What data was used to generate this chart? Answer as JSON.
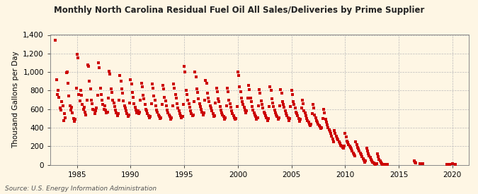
{
  "title": "Monthly North Carolina Residual Fuel Oil All Sales/Deliveries by Prime Supplier",
  "ylabel": "Thousand Gallons per Day",
  "source": "Source: U.S. Energy Information Administration",
  "background_color": "#FEF6E4",
  "dot_color": "#CC0000",
  "grid_color": "#BBBBBB",
  "ylim": [
    0,
    1400
  ],
  "yticks": [
    0,
    200,
    400,
    600,
    800,
    1000,
    1200,
    1400
  ],
  "xlim": [
    1982.5,
    2021.5
  ],
  "xticks": [
    1985,
    1990,
    1995,
    2000,
    2005,
    2010,
    2015,
    2020
  ],
  "data": [
    [
      1983.0,
      1340
    ],
    [
      1983.08,
      920
    ],
    [
      1983.17,
      760
    ],
    [
      1983.25,
      800
    ],
    [
      1983.33,
      730
    ],
    [
      1983.42,
      610
    ],
    [
      1983.5,
      590
    ],
    [
      1983.58,
      680
    ],
    [
      1983.67,
      640
    ],
    [
      1983.75,
      480
    ],
    [
      1983.83,
      550
    ],
    [
      1983.92,
      510
    ],
    [
      1984.0,
      990
    ],
    [
      1984.08,
      1000
    ],
    [
      1984.17,
      880
    ],
    [
      1984.25,
      740
    ],
    [
      1984.33,
      640
    ],
    [
      1984.42,
      590
    ],
    [
      1984.5,
      620
    ],
    [
      1984.58,
      560
    ],
    [
      1984.67,
      500
    ],
    [
      1984.75,
      470
    ],
    [
      1984.83,
      490
    ],
    [
      1984.92,
      830
    ],
    [
      1985.0,
      1190
    ],
    [
      1985.08,
      1150
    ],
    [
      1985.17,
      760
    ],
    [
      1985.25,
      690
    ],
    [
      1985.33,
      800
    ],
    [
      1985.42,
      750
    ],
    [
      1985.5,
      650
    ],
    [
      1985.58,
      600
    ],
    [
      1985.67,
      620
    ],
    [
      1985.75,
      570
    ],
    [
      1985.83,
      540
    ],
    [
      1985.92,
      700
    ],
    [
      1986.0,
      1080
    ],
    [
      1986.08,
      1060
    ],
    [
      1986.17,
      900
    ],
    [
      1986.25,
      820
    ],
    [
      1986.33,
      700
    ],
    [
      1986.42,
      660
    ],
    [
      1986.5,
      600
    ],
    [
      1986.58,
      590
    ],
    [
      1986.67,
      550
    ],
    [
      1986.75,
      580
    ],
    [
      1986.83,
      610
    ],
    [
      1986.92,
      750
    ],
    [
      1987.0,
      1100
    ],
    [
      1987.08,
      1050
    ],
    [
      1987.17,
      830
    ],
    [
      1987.25,
      760
    ],
    [
      1987.33,
      700
    ],
    [
      1987.42,
      650
    ],
    [
      1987.5,
      600
    ],
    [
      1987.58,
      640
    ],
    [
      1987.67,
      590
    ],
    [
      1987.75,
      560
    ],
    [
      1987.83,
      570
    ],
    [
      1987.92,
      720
    ],
    [
      1988.0,
      1010
    ],
    [
      1988.08,
      980
    ],
    [
      1988.17,
      820
    ],
    [
      1988.25,
      780
    ],
    [
      1988.33,
      700
    ],
    [
      1988.42,
      670
    ],
    [
      1988.5,
      630
    ],
    [
      1988.58,
      590
    ],
    [
      1988.67,
      560
    ],
    [
      1988.75,
      530
    ],
    [
      1988.83,
      550
    ],
    [
      1988.92,
      700
    ],
    [
      1989.0,
      960
    ],
    [
      1989.08,
      900
    ],
    [
      1989.17,
      820
    ],
    [
      1989.25,
      770
    ],
    [
      1989.33,
      690
    ],
    [
      1989.42,
      640
    ],
    [
      1989.5,
      610
    ],
    [
      1989.58,
      580
    ],
    [
      1989.67,
      550
    ],
    [
      1989.75,
      520
    ],
    [
      1989.83,
      540
    ],
    [
      1989.92,
      670
    ],
    [
      1990.0,
      920
    ],
    [
      1990.08,
      870
    ],
    [
      1990.17,
      780
    ],
    [
      1990.25,
      730
    ],
    [
      1990.33,
      660
    ],
    [
      1990.42,
      620
    ],
    [
      1990.5,
      590
    ],
    [
      1990.58,
      560
    ],
    [
      1990.67,
      580
    ],
    [
      1990.75,
      550
    ],
    [
      1990.83,
      570
    ],
    [
      1990.92,
      700
    ],
    [
      1991.0,
      880
    ],
    [
      1991.08,
      840
    ],
    [
      1991.17,
      750
    ],
    [
      1991.25,
      710
    ],
    [
      1991.33,
      650
    ],
    [
      1991.42,
      600
    ],
    [
      1991.5,
      580
    ],
    [
      1991.58,
      550
    ],
    [
      1991.67,
      530
    ],
    [
      1991.75,
      510
    ],
    [
      1991.83,
      520
    ],
    [
      1991.92,
      660
    ],
    [
      1992.0,
      870
    ],
    [
      1992.08,
      830
    ],
    [
      1992.17,
      740
    ],
    [
      1992.25,
      700
    ],
    [
      1992.33,
      640
    ],
    [
      1992.42,
      590
    ],
    [
      1992.5,
      570
    ],
    [
      1992.58,
      540
    ],
    [
      1992.67,
      520
    ],
    [
      1992.75,
      500
    ],
    [
      1992.83,
      510
    ],
    [
      1992.92,
      650
    ],
    [
      1993.0,
      860
    ],
    [
      1993.08,
      820
    ],
    [
      1993.17,
      730
    ],
    [
      1993.25,
      690
    ],
    [
      1993.33,
      640
    ],
    [
      1993.42,
      590
    ],
    [
      1993.5,
      560
    ],
    [
      1993.58,
      540
    ],
    [
      1993.67,
      520
    ],
    [
      1993.75,
      490
    ],
    [
      1993.83,
      510
    ],
    [
      1993.92,
      640
    ],
    [
      1994.0,
      870
    ],
    [
      1994.08,
      830
    ],
    [
      1994.17,
      760
    ],
    [
      1994.25,
      720
    ],
    [
      1994.33,
      660
    ],
    [
      1994.42,
      610
    ],
    [
      1994.5,
      580
    ],
    [
      1994.58,
      550
    ],
    [
      1994.67,
      530
    ],
    [
      1994.75,
      510
    ],
    [
      1994.83,
      520
    ],
    [
      1994.92,
      650
    ],
    [
      1995.0,
      1060
    ],
    [
      1995.08,
      1000
    ],
    [
      1995.17,
      800
    ],
    [
      1995.25,
      760
    ],
    [
      1995.33,
      700
    ],
    [
      1995.42,
      660
    ],
    [
      1995.5,
      620
    ],
    [
      1995.58,
      580
    ],
    [
      1995.67,
      550
    ],
    [
      1995.75,
      530
    ],
    [
      1995.83,
      540
    ],
    [
      1995.92,
      680
    ],
    [
      1996.0,
      1000
    ],
    [
      1996.08,
      950
    ],
    [
      1996.17,
      820
    ],
    [
      1996.25,
      780
    ],
    [
      1996.33,
      710
    ],
    [
      1996.42,
      660
    ],
    [
      1996.5,
      630
    ],
    [
      1996.58,
      600
    ],
    [
      1996.67,
      570
    ],
    [
      1996.75,
      540
    ],
    [
      1996.83,
      560
    ],
    [
      1996.92,
      700
    ],
    [
      1997.0,
      910
    ],
    [
      1997.08,
      880
    ],
    [
      1997.17,
      770
    ],
    [
      1997.25,
      720
    ],
    [
      1997.33,
      680
    ],
    [
      1997.42,
      640
    ],
    [
      1997.5,
      610
    ],
    [
      1997.58,
      580
    ],
    [
      1997.67,
      550
    ],
    [
      1997.75,
      520
    ],
    [
      1997.83,
      530
    ],
    [
      1997.92,
      670
    ],
    [
      1998.0,
      830
    ],
    [
      1998.08,
      790
    ],
    [
      1998.17,
      710
    ],
    [
      1998.25,
      680
    ],
    [
      1998.33,
      630
    ],
    [
      1998.42,
      590
    ],
    [
      1998.5,
      560
    ],
    [
      1998.58,
      540
    ],
    [
      1998.67,
      520
    ],
    [
      1998.75,
      490
    ],
    [
      1998.83,
      510
    ],
    [
      1998.92,
      640
    ],
    [
      1999.0,
      830
    ],
    [
      1999.08,
      790
    ],
    [
      1999.17,
      700
    ],
    [
      1999.25,
      660
    ],
    [
      1999.33,
      620
    ],
    [
      1999.42,
      580
    ],
    [
      1999.5,
      550
    ],
    [
      1999.58,
      530
    ],
    [
      1999.67,
      510
    ],
    [
      1999.75,
      490
    ],
    [
      1999.83,
      500
    ],
    [
      1999.92,
      630
    ],
    [
      2000.0,
      1000
    ],
    [
      2000.08,
      960
    ],
    [
      2000.17,
      840
    ],
    [
      2000.25,
      790
    ],
    [
      2000.33,
      720
    ],
    [
      2000.42,
      680
    ],
    [
      2000.5,
      650
    ],
    [
      2000.58,
      620
    ],
    [
      2000.67,
      590
    ],
    [
      2000.75,
      560
    ],
    [
      2000.83,
      580
    ],
    [
      2000.92,
      720
    ],
    [
      2001.0,
      860
    ],
    [
      2001.08,
      810
    ],
    [
      2001.17,
      720
    ],
    [
      2001.25,
      680
    ],
    [
      2001.33,
      630
    ],
    [
      2001.42,
      590
    ],
    [
      2001.5,
      560
    ],
    [
      2001.58,
      540
    ],
    [
      2001.67,
      520
    ],
    [
      2001.75,
      490
    ],
    [
      2001.83,
      510
    ],
    [
      2001.92,
      640
    ],
    [
      2002.0,
      810
    ],
    [
      2002.08,
      770
    ],
    [
      2002.17,
      690
    ],
    [
      2002.25,
      650
    ],
    [
      2002.33,
      610
    ],
    [
      2002.42,
      570
    ],
    [
      2002.5,
      550
    ],
    [
      2002.58,
      530
    ],
    [
      2002.67,
      510
    ],
    [
      2002.75,
      480
    ],
    [
      2002.83,
      500
    ],
    [
      2002.92,
      630
    ],
    [
      2003.0,
      840
    ],
    [
      2003.08,
      800
    ],
    [
      2003.17,
      710
    ],
    [
      2003.25,
      670
    ],
    [
      2003.33,
      630
    ],
    [
      2003.42,
      590
    ],
    [
      2003.5,
      560
    ],
    [
      2003.58,
      540
    ],
    [
      2003.67,
      520
    ],
    [
      2003.75,
      490
    ],
    [
      2003.83,
      510
    ],
    [
      2003.92,
      640
    ],
    [
      2004.0,
      810
    ],
    [
      2004.08,
      770
    ],
    [
      2004.17,
      680
    ],
    [
      2004.25,
      650
    ],
    [
      2004.33,
      620
    ],
    [
      2004.42,
      580
    ],
    [
      2004.5,
      550
    ],
    [
      2004.58,
      530
    ],
    [
      2004.67,
      510
    ],
    [
      2004.75,
      480
    ],
    [
      2004.83,
      500
    ],
    [
      2004.92,
      630
    ],
    [
      2005.0,
      800
    ],
    [
      2005.08,
      760
    ],
    [
      2005.17,
      680
    ],
    [
      2005.25,
      650
    ],
    [
      2005.33,
      610
    ],
    [
      2005.42,
      570
    ],
    [
      2005.5,
      550
    ],
    [
      2005.58,
      530
    ],
    [
      2005.67,
      500
    ],
    [
      2005.75,
      470
    ],
    [
      2005.83,
      490
    ],
    [
      2005.92,
      610
    ],
    [
      2006.0,
      700
    ],
    [
      2006.08,
      660
    ],
    [
      2006.17,
      580
    ],
    [
      2006.25,
      560
    ],
    [
      2006.33,
      530
    ],
    [
      2006.42,
      500
    ],
    [
      2006.5,
      480
    ],
    [
      2006.58,
      460
    ],
    [
      2006.67,
      440
    ],
    [
      2006.75,
      420
    ],
    [
      2006.83,
      440
    ],
    [
      2006.92,
      550
    ],
    [
      2007.0,
      650
    ],
    [
      2007.08,
      610
    ],
    [
      2007.17,
      540
    ],
    [
      2007.25,
      510
    ],
    [
      2007.33,
      480
    ],
    [
      2007.42,
      460
    ],
    [
      2007.5,
      440
    ],
    [
      2007.58,
      420
    ],
    [
      2007.67,
      410
    ],
    [
      2007.75,
      390
    ],
    [
      2007.83,
      400
    ],
    [
      2007.92,
      500
    ],
    [
      2008.0,
      600
    ],
    [
      2008.08,
      560
    ],
    [
      2008.17,
      490
    ],
    [
      2008.25,
      460
    ],
    [
      2008.33,
      430
    ],
    [
      2008.42,
      400
    ],
    [
      2008.5,
      380
    ],
    [
      2008.58,
      360
    ],
    [
      2008.67,
      340
    ],
    [
      2008.75,
      310
    ],
    [
      2008.83,
      280
    ],
    [
      2008.92,
      250
    ],
    [
      2009.0,
      370
    ],
    [
      2009.08,
      340
    ],
    [
      2009.17,
      310
    ],
    [
      2009.25,
      290
    ],
    [
      2009.33,
      270
    ],
    [
      2009.42,
      250
    ],
    [
      2009.5,
      230
    ],
    [
      2009.58,
      210
    ],
    [
      2009.67,
      200
    ],
    [
      2009.75,
      190
    ],
    [
      2009.83,
      180
    ],
    [
      2009.92,
      200
    ],
    [
      2010.0,
      340
    ],
    [
      2010.08,
      300
    ],
    [
      2010.17,
      260
    ],
    [
      2010.25,
      240
    ],
    [
      2010.33,
      220
    ],
    [
      2010.42,
      200
    ],
    [
      2010.5,
      190
    ],
    [
      2010.58,
      170
    ],
    [
      2010.67,
      150
    ],
    [
      2010.75,
      130
    ],
    [
      2010.83,
      110
    ],
    [
      2010.92,
      100
    ],
    [
      2011.0,
      250
    ],
    [
      2011.08,
      220
    ],
    [
      2011.17,
      190
    ],
    [
      2011.25,
      170
    ],
    [
      2011.33,
      150
    ],
    [
      2011.42,
      130
    ],
    [
      2011.5,
      110
    ],
    [
      2011.58,
      90
    ],
    [
      2011.67,
      70
    ],
    [
      2011.75,
      50
    ],
    [
      2011.83,
      30
    ],
    [
      2011.92,
      40
    ],
    [
      2012.0,
      180
    ],
    [
      2012.08,
      150
    ],
    [
      2012.17,
      120
    ],
    [
      2012.25,
      100
    ],
    [
      2012.33,
      80
    ],
    [
      2012.42,
      60
    ],
    [
      2012.5,
      45
    ],
    [
      2012.58,
      30
    ],
    [
      2012.67,
      20
    ],
    [
      2012.75,
      10
    ],
    [
      2012.83,
      5
    ],
    [
      2012.92,
      15
    ],
    [
      2013.0,
      120
    ],
    [
      2013.08,
      90
    ],
    [
      2013.17,
      60
    ],
    [
      2013.25,
      40
    ],
    [
      2013.33,
      25
    ],
    [
      2013.42,
      10
    ],
    [
      2013.5,
      5
    ],
    [
      2013.58,
      3
    ],
    [
      2013.67,
      2
    ],
    [
      2013.75,
      1
    ],
    [
      2013.83,
      1
    ],
    [
      2013.92,
      5
    ],
    [
      2016.42,
      45
    ],
    [
      2016.5,
      30
    ],
    [
      2016.58,
      20
    ],
    [
      2017.0,
      15
    ],
    [
      2017.25,
      10
    ],
    [
      2019.5,
      8
    ],
    [
      2019.75,
      5
    ],
    [
      2020.0,
      12
    ],
    [
      2020.25,
      8
    ]
  ]
}
